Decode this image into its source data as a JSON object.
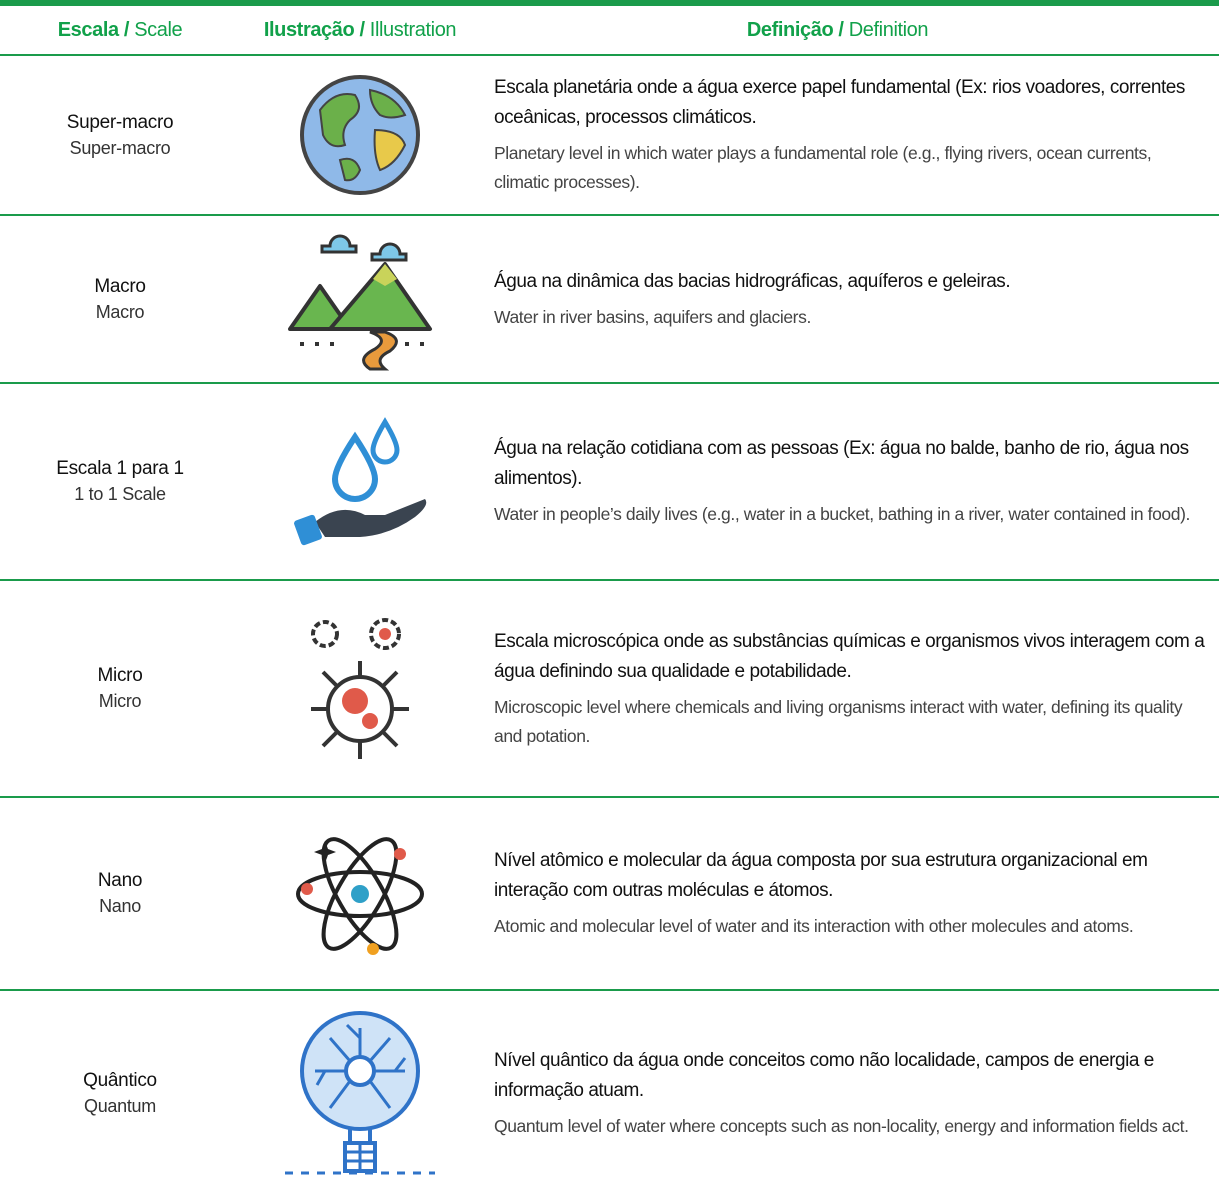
{
  "header": {
    "scale": {
      "pt": "Escala /",
      "en": "Scale"
    },
    "illustration": {
      "pt": "Ilustração /",
      "en": "Illustration"
    },
    "definition": {
      "pt": "Definição /",
      "en": "Definition"
    }
  },
  "rows": [
    {
      "scale_pt": "Super-macro",
      "scale_en": "Super-macro",
      "definition_pt": "Escala planetária onde a água exerce papel fundamental (Ex: rios voadores, correntes oceânicas, processos climáticos.",
      "definition_en": "Planetary level in which water plays a fundamental role (e.g., flying rivers, ocean currents, climatic processes)."
    },
    {
      "scale_pt": "Macro",
      "scale_en": "Macro",
      "definition_pt": "Água na dinâmica das bacias hidrográficas, aquíferos e geleiras.",
      "definition_en": "Water in river basins, aquifers and glaciers."
    },
    {
      "scale_pt": "Escala 1 para 1",
      "scale_en": "1 to 1 Scale",
      "definition_pt": "Água na relação cotidiana com as pessoas (Ex: água no balde, banho de rio, água nos alimentos).",
      "definition_en": "Water in people’s daily lives (e.g., water in a bucket, bathing in a river, water contained in food)."
    },
    {
      "scale_pt": "Micro",
      "scale_en": "Micro",
      "definition_pt": "Escala microscópica onde as substâncias químicas e organismos vivos interagem com a água definindo sua qualidade e potabilidade.",
      "definition_en": "Microscopic level where chemicals and living organisms interact with water, defining its quality and potation."
    },
    {
      "scale_pt": "Nano",
      "scale_en": "Nano",
      "definition_pt": "Nível atômico e molecular da água composta por sua estrutura organizacional em interação com outras moléculas e átomos.",
      "definition_en": "Atomic and molecular level of water and its interaction with other molecules and atoms."
    },
    {
      "scale_pt": "Quântico",
      "scale_en": "Quantum",
      "definition_pt": "Nível quântico da água onde conceitos como não localidade, campos de energia e informação atuam.",
      "definition_en": "Quantum level of water where concepts such as non-locality, energy and information fields act."
    }
  ]
}
